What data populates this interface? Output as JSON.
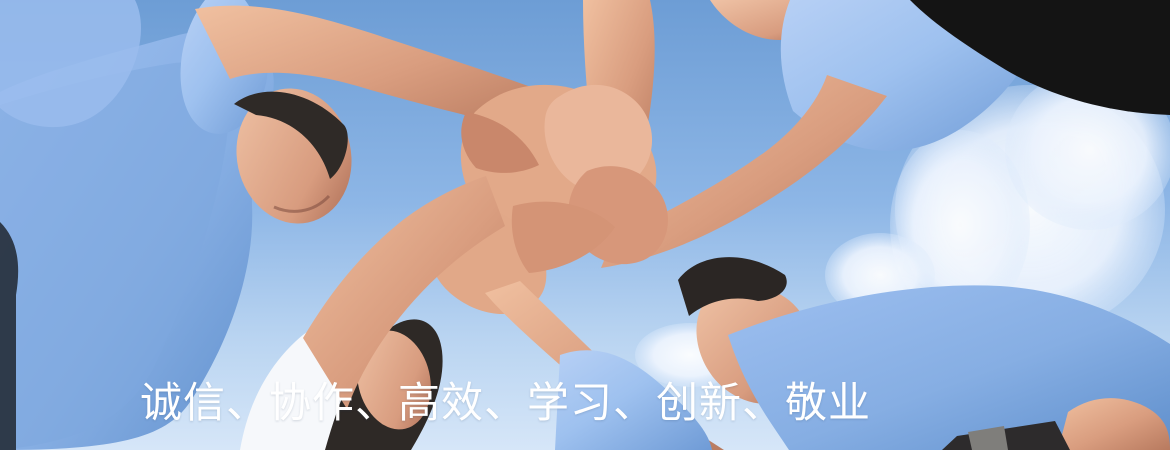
{
  "banner": {
    "slogan": "诚信、协作、高效、学习、创新、敬业"
  },
  "colors": {
    "sky_top": "#6f9fd6",
    "sky_bottom": "#d7e7f8",
    "shirt_blue": "#8db4e4",
    "skin": "#d9a98e",
    "hair": "#2f2a27",
    "text": "#ffffff"
  }
}
